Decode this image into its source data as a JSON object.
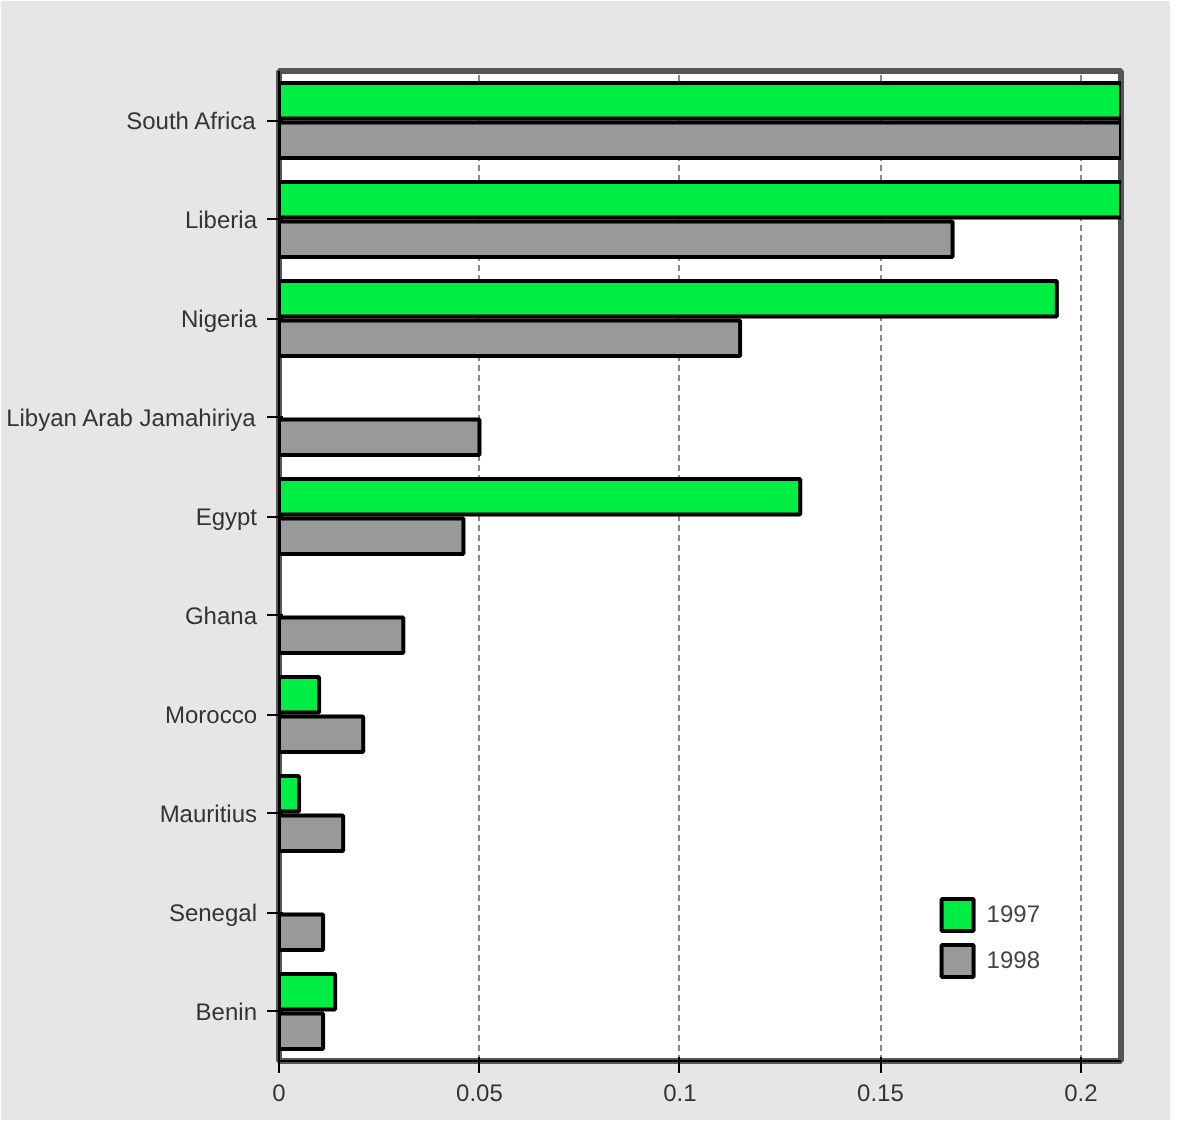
{
  "chart_data": {
    "type": "bar",
    "orientation": "horizontal",
    "categories": [
      "South Africa",
      "Liberia",
      "Nigeria",
      "Libyan Arab Jamahiriya",
      "Egypt",
      "Ghana",
      "Morocco",
      "Mauritius",
      "Senegal",
      "Benin"
    ],
    "series": [
      {
        "name": "1997",
        "color": "#00ee44",
        "values": [
          0.21,
          0.21,
          0.194,
          null,
          0.13,
          null,
          0.01,
          0.005,
          null,
          0.014
        ]
      },
      {
        "name": "1998",
        "color": "#999999",
        "values": [
          0.21,
          0.168,
          0.115,
          0.05,
          0.046,
          0.031,
          0.021,
          0.016,
          0.011,
          0.011
        ]
      }
    ],
    "xlim": [
      0,
      0.21
    ],
    "xticks": [
      0,
      {
        "value": 0.05,
        "label": "0.05"
      },
      {
        "value": 0.1,
        "label": "0.1"
      },
      {
        "value": 0.15,
        "label": "0.15"
      },
      {
        "value": 0.2,
        "label": "0.2"
      }
    ],
    "grid": "x",
    "legend": "bottom right"
  }
}
